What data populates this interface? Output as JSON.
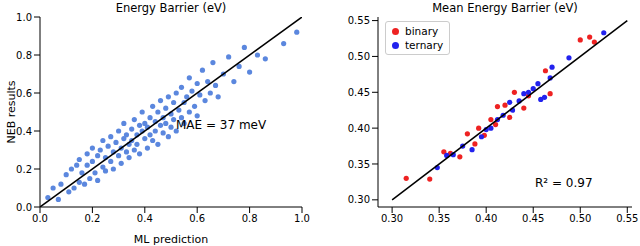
{
  "chart_data": [
    {
      "type": "scatter",
      "title": "Energy Barrier (eV)",
      "x_label": "ML prediction",
      "y_label": "NEB results",
      "annotations": [
        "MAE = 37 meV"
      ],
      "xlim": [
        0,
        1
      ],
      "ylim": [
        0,
        1
      ],
      "xticks": [
        {
          "value": 0,
          "label": "0.0"
        },
        0.2,
        0.4,
        0.6,
        0.8,
        {
          "value": 1,
          "label": "1.0"
        }
      ],
      "yticks": [
        {
          "value": 0,
          "label": "0.0"
        },
        0.2,
        0.4,
        0.6,
        0.8,
        {
          "value": 1,
          "label": "1.0"
        }
      ],
      "color": "#5b87de",
      "x": [
        0.03,
        0.05,
        0.07,
        0.08,
        0.1,
        0.11,
        0.12,
        0.13,
        0.14,
        0.15,
        0.15,
        0.16,
        0.17,
        0.18,
        0.18,
        0.19,
        0.2,
        0.2,
        0.21,
        0.22,
        0.22,
        0.23,
        0.24,
        0.24,
        0.25,
        0.25,
        0.26,
        0.27,
        0.27,
        0.28,
        0.28,
        0.29,
        0.3,
        0.3,
        0.31,
        0.31,
        0.32,
        0.32,
        0.33,
        0.33,
        0.34,
        0.34,
        0.35,
        0.35,
        0.36,
        0.36,
        0.37,
        0.37,
        0.38,
        0.38,
        0.39,
        0.39,
        0.4,
        0.4,
        0.41,
        0.41,
        0.42,
        0.42,
        0.43,
        0.43,
        0.44,
        0.44,
        0.45,
        0.45,
        0.46,
        0.46,
        0.47,
        0.47,
        0.48,
        0.48,
        0.49,
        0.49,
        0.5,
        0.5,
        0.51,
        0.51,
        0.52,
        0.52,
        0.53,
        0.54,
        0.54,
        0.55,
        0.55,
        0.56,
        0.57,
        0.57,
        0.58,
        0.59,
        0.6,
        0.6,
        0.61,
        0.62,
        0.63,
        0.64,
        0.65,
        0.66,
        0.67,
        0.68,
        0.7,
        0.72,
        0.74,
        0.76,
        0.78,
        0.8,
        0.83,
        0.86,
        0.93,
        0.98
      ],
      "values": [
        0.05,
        0.1,
        0.04,
        0.12,
        0.17,
        0.08,
        0.2,
        0.1,
        0.22,
        0.13,
        0.25,
        0.18,
        0.12,
        0.22,
        0.28,
        0.15,
        0.24,
        0.31,
        0.18,
        0.27,
        0.14,
        0.3,
        0.21,
        0.35,
        0.26,
        0.19,
        0.32,
        0.24,
        0.37,
        0.29,
        0.2,
        0.34,
        0.27,
        0.4,
        0.31,
        0.23,
        0.36,
        0.44,
        0.29,
        0.38,
        0.33,
        0.26,
        0.41,
        0.35,
        0.3,
        0.46,
        0.38,
        0.33,
        0.43,
        0.28,
        0.4,
        0.5,
        0.36,
        0.44,
        0.31,
        0.42,
        0.47,
        0.38,
        0.53,
        0.35,
        0.45,
        0.4,
        0.5,
        0.33,
        0.43,
        0.56,
        0.47,
        0.39,
        0.52,
        0.44,
        0.37,
        0.58,
        0.49,
        0.42,
        0.55,
        0.46,
        0.4,
        0.6,
        0.51,
        0.47,
        0.63,
        0.55,
        0.44,
        0.58,
        0.5,
        0.68,
        0.61,
        0.53,
        0.65,
        0.48,
        0.59,
        0.72,
        0.56,
        0.66,
        0.6,
        0.76,
        0.64,
        0.58,
        0.7,
        0.79,
        0.66,
        0.74,
        0.84,
        0.71,
        0.8,
        0.78,
        0.86,
        0.92
      ],
      "identity_line": {
        "x": [
          0,
          1
        ],
        "values": [
          0,
          1
        ],
        "color": "#000000"
      }
    },
    {
      "type": "scatter",
      "title": "Mean Energy Barrier (eV)",
      "annotations": [
        "R² = 0.97"
      ],
      "legend": "upper left",
      "xlim": [
        0.285,
        0.555
      ],
      "ylim": [
        0.29,
        0.555
      ],
      "xticks": [
        {
          "value": 0.3,
          "label": "0.30"
        },
        0.35,
        {
          "value": 0.4,
          "label": "0.40"
        },
        0.45,
        {
          "value": 0.5,
          "label": "0.50"
        },
        0.55
      ],
      "yticks": [
        {
          "value": 0.3,
          "label": "0.30"
        },
        0.35,
        {
          "value": 0.4,
          "label": "0.40"
        },
        0.45,
        {
          "value": 0.5,
          "label": "0.50"
        },
        0.55
      ],
      "series": [
        {
          "name": "binary",
          "color": "#ee2222",
          "x": [
            0.315,
            0.34,
            0.355,
            0.362,
            0.372,
            0.38,
            0.388,
            0.392,
            0.398,
            0.405,
            0.41,
            0.412,
            0.42,
            0.425,
            0.43,
            0.44,
            0.445,
            0.468,
            0.5,
            0.51,
            0.515,
            0.463
          ],
          "values": [
            0.33,
            0.329,
            0.367,
            0.365,
            0.36,
            0.392,
            0.378,
            0.4,
            0.39,
            0.412,
            0.405,
            0.43,
            0.432,
            0.415,
            0.45,
            0.428,
            0.445,
            0.448,
            0.523,
            0.527,
            0.52,
            0.48
          ]
        },
        {
          "name": "ternary",
          "color": "#2222ee",
          "x": [
            0.348,
            0.358,
            0.365,
            0.375,
            0.385,
            0.395,
            0.4,
            0.405,
            0.412,
            0.418,
            0.425,
            0.428,
            0.435,
            0.44,
            0.445,
            0.45,
            0.455,
            0.458,
            0.462,
            0.468,
            0.47,
            0.488,
            0.525
          ],
          "values": [
            0.345,
            0.362,
            0.363,
            0.375,
            0.37,
            0.388,
            0.398,
            0.4,
            0.412,
            0.418,
            0.436,
            0.425,
            0.438,
            0.448,
            0.45,
            0.455,
            0.462,
            0.44,
            0.443,
            0.47,
            0.485,
            0.498,
            0.533
          ]
        }
      ],
      "identity_line": {
        "x": [
          0.3,
          0.55
        ],
        "values": [
          0.3,
          0.55
        ],
        "color": "#000000"
      }
    }
  ]
}
